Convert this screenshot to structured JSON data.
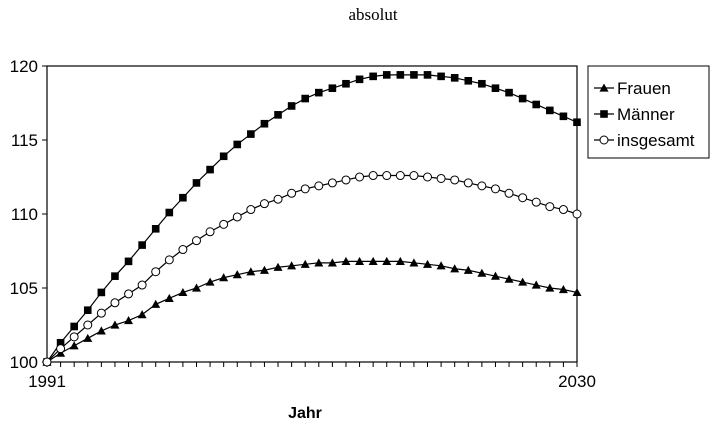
{
  "chart_data": {
    "type": "line",
    "title": "absolut",
    "xlabel": "Jahr",
    "ylabel": "",
    "x": [
      1991,
      1992,
      1993,
      1994,
      1995,
      1996,
      1997,
      1998,
      1999,
      2000,
      2001,
      2002,
      2003,
      2004,
      2005,
      2006,
      2007,
      2008,
      2009,
      2010,
      2011,
      2012,
      2013,
      2014,
      2015,
      2016,
      2017,
      2018,
      2019,
      2020,
      2021,
      2022,
      2023,
      2024,
      2025,
      2026,
      2027,
      2028,
      2029,
      2030
    ],
    "x_tick_labels": [
      "1991",
      "2030"
    ],
    "xlim": [
      1991,
      2030
    ],
    "ylim": [
      100,
      120
    ],
    "y_ticks": [
      100,
      105,
      110,
      115,
      120
    ],
    "y_tick_labels": [
      "100",
      "105",
      "110",
      "115",
      "120"
    ],
    "grid": false,
    "legend_position": "right",
    "colors": {
      "line": "#000000",
      "marker": "#000000",
      "background": "#ffffff"
    },
    "series": [
      {
        "name": "Frauen",
        "marker": "triangle",
        "values": [
          100.0,
          100.6,
          101.1,
          101.6,
          102.1,
          102.5,
          102.8,
          103.2,
          103.9,
          104.3,
          104.7,
          105.0,
          105.4,
          105.7,
          105.9,
          106.1,
          106.2,
          106.4,
          106.5,
          106.6,
          106.7,
          106.7,
          106.8,
          106.8,
          106.8,
          106.8,
          106.8,
          106.7,
          106.6,
          106.5,
          106.3,
          106.2,
          106.0,
          105.8,
          105.6,
          105.4,
          105.2,
          105.0,
          104.9,
          104.7
        ]
      },
      {
        "name": "Männer",
        "marker": "square",
        "values": [
          100.0,
          101.3,
          102.4,
          103.5,
          104.7,
          105.8,
          106.8,
          107.9,
          109.0,
          110.1,
          111.1,
          112.1,
          113.0,
          113.9,
          114.7,
          115.4,
          116.1,
          116.7,
          117.3,
          117.8,
          118.2,
          118.5,
          118.8,
          119.1,
          119.3,
          119.4,
          119.4,
          119.4,
          119.4,
          119.3,
          119.2,
          119.0,
          118.8,
          118.5,
          118.2,
          117.8,
          117.4,
          117.0,
          116.6,
          116.2
        ]
      },
      {
        "name": "insgesamt",
        "marker": "open-circle",
        "values": [
          100.0,
          100.9,
          101.7,
          102.5,
          103.3,
          104.0,
          104.6,
          105.2,
          106.1,
          106.9,
          107.6,
          108.2,
          108.8,
          109.3,
          109.8,
          110.3,
          110.7,
          111.0,
          111.4,
          111.7,
          111.9,
          112.1,
          112.3,
          112.5,
          112.6,
          112.6,
          112.6,
          112.6,
          112.5,
          112.4,
          112.3,
          112.1,
          111.9,
          111.7,
          111.4,
          111.1,
          110.8,
          110.5,
          110.3,
          110.0
        ]
      }
    ]
  }
}
